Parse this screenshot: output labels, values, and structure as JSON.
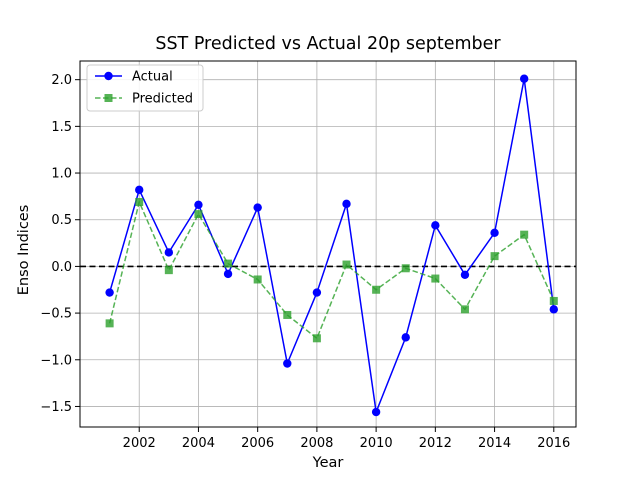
{
  "chart_data": {
    "type": "line",
    "title": "SST Predicted vs Actual 20p september",
    "xlabel": "Year",
    "ylabel": "Enso Indices",
    "xlim": [
      2000.0,
      2016.75
    ],
    "ylim": [
      -1.72,
      2.2
    ],
    "xticks": [
      2002,
      2004,
      2006,
      2008,
      2010,
      2012,
      2014,
      2016
    ],
    "yticks": [
      -1.5,
      -1.0,
      -0.5,
      0.0,
      0.5,
      1.0,
      1.5,
      2.0
    ],
    "xtick_labels": [
      "2002",
      "2004",
      "2006",
      "2008",
      "2010",
      "2012",
      "2014",
      "2016"
    ],
    "ytick_labels": [
      "−1.5",
      "−1.0",
      "−0.5",
      "0.0",
      "0.5",
      "1.0",
      "1.5",
      "2.0"
    ],
    "grid": true,
    "reference_line": {
      "y": 0.0,
      "style": "dashed",
      "color": "#000000"
    },
    "legend_position": "top-left",
    "x": [
      2001,
      2002,
      2003,
      2004,
      2005,
      2006,
      2007,
      2008,
      2009,
      2010,
      2011,
      2012,
      2013,
      2014,
      2015,
      2016
    ],
    "series": [
      {
        "name": "Actual",
        "color": "#0000ff",
        "line_style": "solid",
        "marker": "circle",
        "values": [
          -0.28,
          0.82,
          0.15,
          0.66,
          -0.08,
          0.63,
          -1.04,
          -0.28,
          0.67,
          -1.56,
          -0.76,
          0.44,
          -0.09,
          0.36,
          2.01,
          -0.46
        ]
      },
      {
        "name": "Predicted",
        "color": "#2ca02c",
        "line_style": "dashed",
        "marker": "square",
        "values": [
          -0.61,
          0.69,
          -0.04,
          0.56,
          0.03,
          -0.14,
          -0.52,
          -0.77,
          0.02,
          -0.25,
          -0.02,
          -0.13,
          -0.46,
          0.11,
          0.34,
          -0.37
        ]
      }
    ]
  }
}
